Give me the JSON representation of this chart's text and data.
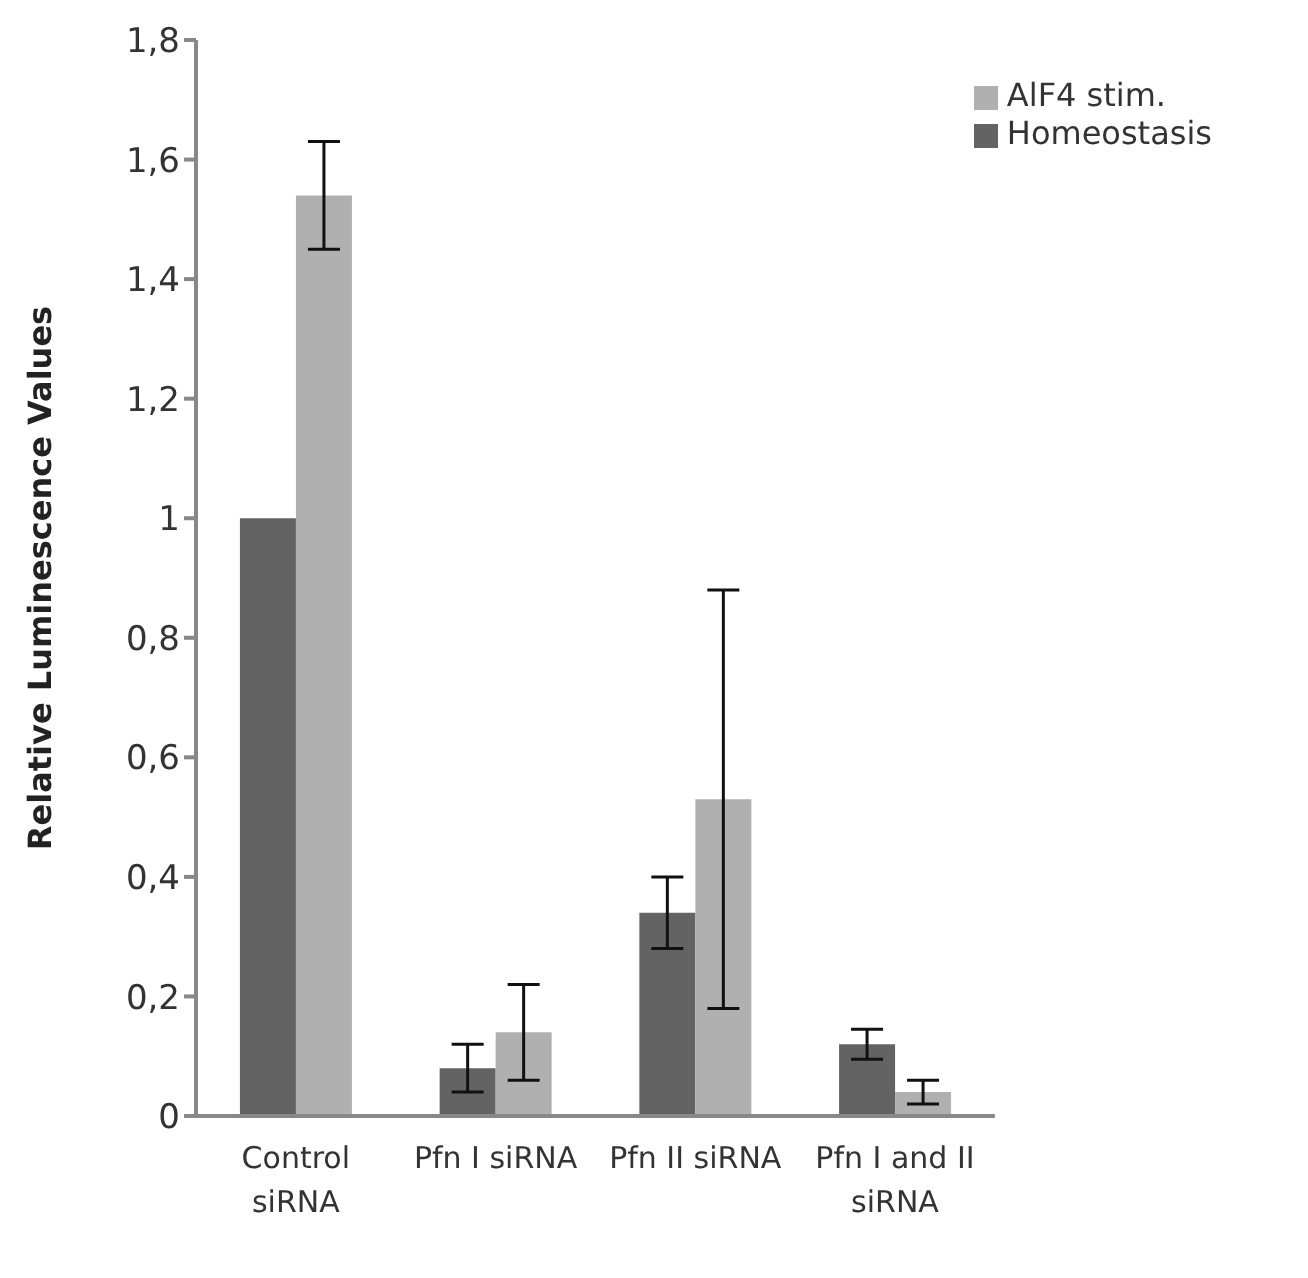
{
  "chart_data": {
    "type": "bar",
    "ylabel": "Relative Luminescence Values",
    "categories": [
      "Control siRNA",
      "Pfn I siRNA",
      "Pfn II siRNA",
      "Pfn I and II siRNA"
    ],
    "series": [
      {
        "name": "Homeostasis",
        "color": "#636363",
        "values": [
          1,
          0.08,
          0.34,
          0.12
        ],
        "errors": [
          0,
          0.04,
          0.06,
          0.025
        ]
      },
      {
        "name": "AlF4 stim.",
        "color": "#b0b0b0",
        "values": [
          1.54,
          0.14,
          0.53,
          0.04
        ],
        "errors": [
          0.09,
          0.08,
          0.35,
          0.02
        ]
      }
    ],
    "ylim": [
      0,
      1.8
    ],
    "yticks": [
      0,
      {
        "value": 0.2,
        "label": "0,2"
      },
      {
        "value": 0.4,
        "label": "0,4"
      },
      {
        "value": 0.6,
        "label": "0,6"
      },
      {
        "value": 0.8,
        "label": "0,8"
      },
      1,
      {
        "value": 1.2,
        "label": "1,2"
      },
      {
        "value": 1.4,
        "label": "1,4"
      },
      {
        "value": 1.6,
        "label": "1,6"
      },
      {
        "value": 1.8,
        "label": "1,8"
      }
    ],
    "grid": false,
    "legend": "top right"
  }
}
